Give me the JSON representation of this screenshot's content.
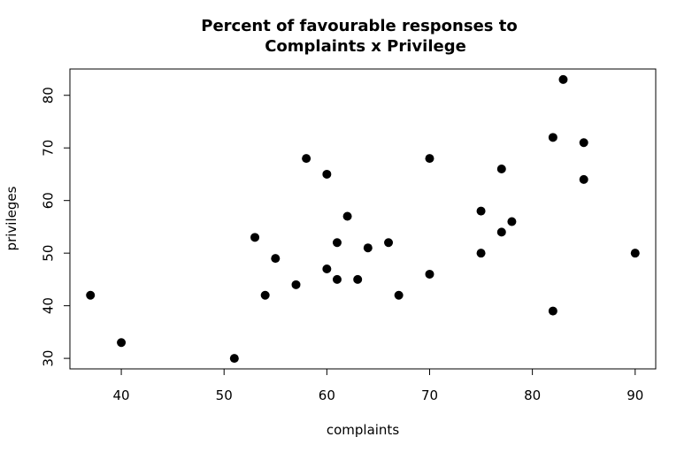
{
  "chart_data": {
    "type": "scatter",
    "title_line1": "Percent of favourable responses to",
    "title_line2": "Complaints x Privilege",
    "xlabel": "complaints",
    "ylabel": "privileges",
    "xlim": [
      35,
      92
    ],
    "ylim": [
      28,
      85
    ],
    "x_ticks": [
      40,
      50,
      60,
      70,
      80,
      90
    ],
    "y_ticks": [
      30,
      40,
      50,
      60,
      70,
      80
    ],
    "points": [
      {
        "x": 51,
        "y": 30
      },
      {
        "x": 64,
        "y": 51
      },
      {
        "x": 70,
        "y": 68
      },
      {
        "x": 63,
        "y": 45
      },
      {
        "x": 78,
        "y": 56
      },
      {
        "x": 55,
        "y": 49
      },
      {
        "x": 67,
        "y": 42
      },
      {
        "x": 75,
        "y": 50
      },
      {
        "x": 82,
        "y": 72
      },
      {
        "x": 61,
        "y": 45
      },
      {
        "x": 53,
        "y": 53
      },
      {
        "x": 60,
        "y": 47
      },
      {
        "x": 62,
        "y": 57
      },
      {
        "x": 83,
        "y": 83
      },
      {
        "x": 77,
        "y": 54
      },
      {
        "x": 90,
        "y": 50
      },
      {
        "x": 85,
        "y": 64
      },
      {
        "x": 60,
        "y": 65
      },
      {
        "x": 70,
        "y": 46
      },
      {
        "x": 58,
        "y": 68
      },
      {
        "x": 40,
        "y": 33
      },
      {
        "x": 61,
        "y": 52
      },
      {
        "x": 66,
        "y": 52
      },
      {
        "x": 37,
        "y": 42
      },
      {
        "x": 54,
        "y": 42
      },
      {
        "x": 77,
        "y": 66
      },
      {
        "x": 75,
        "y": 58
      },
      {
        "x": 57,
        "y": 44
      },
      {
        "x": 85,
        "y": 71
      },
      {
        "x": 82,
        "y": 39
      }
    ],
    "grid": false,
    "legend": "none",
    "point_color": "#000000"
  }
}
